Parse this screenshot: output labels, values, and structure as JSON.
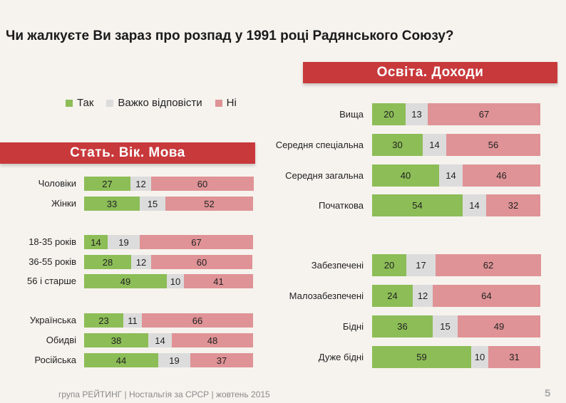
{
  "title": "Чи жалкуєте Ви зараз про розпад у 1991 році Радянського Союзу?",
  "footer": "група РЕЙТИНГ  |  Ностальгія за СРСР  |  жовтень 2015",
  "page_number": "5",
  "colors": {
    "yes": "#8cbd57",
    "hard": "#dcdcdc",
    "no": "#df9396",
    "banner": "#c8393b"
  },
  "legend": [
    {
      "label": "Так",
      "color": "#8cbd57"
    },
    {
      "label": "Важко відповісти",
      "color": "#dcdcdc"
    },
    {
      "label": "Ні",
      "color": "#df9396"
    }
  ],
  "chart_data": [
    {
      "type": "bar",
      "stacked": true,
      "orientation": "horizontal",
      "title": "Стать. Вік. Мова",
      "series": [
        {
          "name": "Так"
        },
        {
          "name": "Важко відповісти"
        },
        {
          "name": "Ні"
        }
      ],
      "rows": [
        {
          "label": "Чоловіки",
          "values": [
            27,
            12,
            60
          ]
        },
        {
          "label": "Жінки",
          "values": [
            33,
            15,
            52
          ]
        },
        {
          "label": "18-35 років",
          "values": [
            14,
            19,
            67
          ]
        },
        {
          "label": "36-55 років",
          "values": [
            28,
            12,
            60
          ]
        },
        {
          "label": "56 і старше",
          "values": [
            49,
            10,
            41
          ]
        },
        {
          "label": "Українська",
          "values": [
            23,
            11,
            66
          ]
        },
        {
          "label": "Обидві",
          "values": [
            38,
            14,
            48
          ]
        },
        {
          "label": "Російська",
          "values": [
            44,
            19,
            37
          ]
        }
      ]
    },
    {
      "type": "bar",
      "stacked": true,
      "orientation": "horizontal",
      "title": "Освіта. Доходи",
      "series": [
        {
          "name": "Так"
        },
        {
          "name": "Важко відповісти"
        },
        {
          "name": "Ні"
        }
      ],
      "rows": [
        {
          "label": "Вища",
          "values": [
            20,
            13,
            67
          ]
        },
        {
          "label": "Середня спеціальна",
          "values": [
            30,
            14,
            56
          ]
        },
        {
          "label": "Середня загальна",
          "values": [
            40,
            14,
            46
          ]
        },
        {
          "label": "Початкова",
          "values": [
            54,
            14,
            32
          ]
        },
        {
          "label": "Забезпечені",
          "values": [
            20,
            17,
            62
          ]
        },
        {
          "label": "Малозабезпечені",
          "values": [
            24,
            12,
            64
          ]
        },
        {
          "label": "Бідні",
          "values": [
            36,
            15,
            49
          ]
        },
        {
          "label": "Дуже бідні",
          "values": [
            59,
            10,
            31
          ]
        }
      ]
    }
  ]
}
